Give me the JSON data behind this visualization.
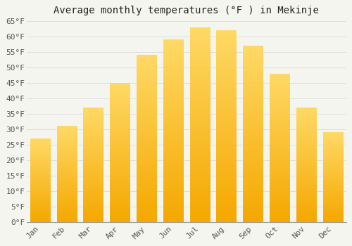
{
  "title": "Average monthly temperatures (°F ) in Mekinje",
  "months": [
    "Jan",
    "Feb",
    "Mar",
    "Apr",
    "May",
    "Jun",
    "Jul",
    "Aug",
    "Sep",
    "Oct",
    "Nov",
    "Dec"
  ],
  "values": [
    27,
    31,
    37,
    45,
    54,
    59,
    63,
    62,
    57,
    48,
    37,
    29
  ],
  "bar_color_bottom": "#F5A800",
  "bar_color_top": "#FFD966",
  "background_color": "#F5F5F0",
  "plot_bg_color": "#F5F5F0",
  "grid_color": "#DDDDDD",
  "text_color": "#555555",
  "title_color": "#222222",
  "ylim": [
    0,
    65
  ],
  "ytick_step": 5,
  "title_fontsize": 10,
  "tick_fontsize": 8,
  "font_family": "monospace"
}
